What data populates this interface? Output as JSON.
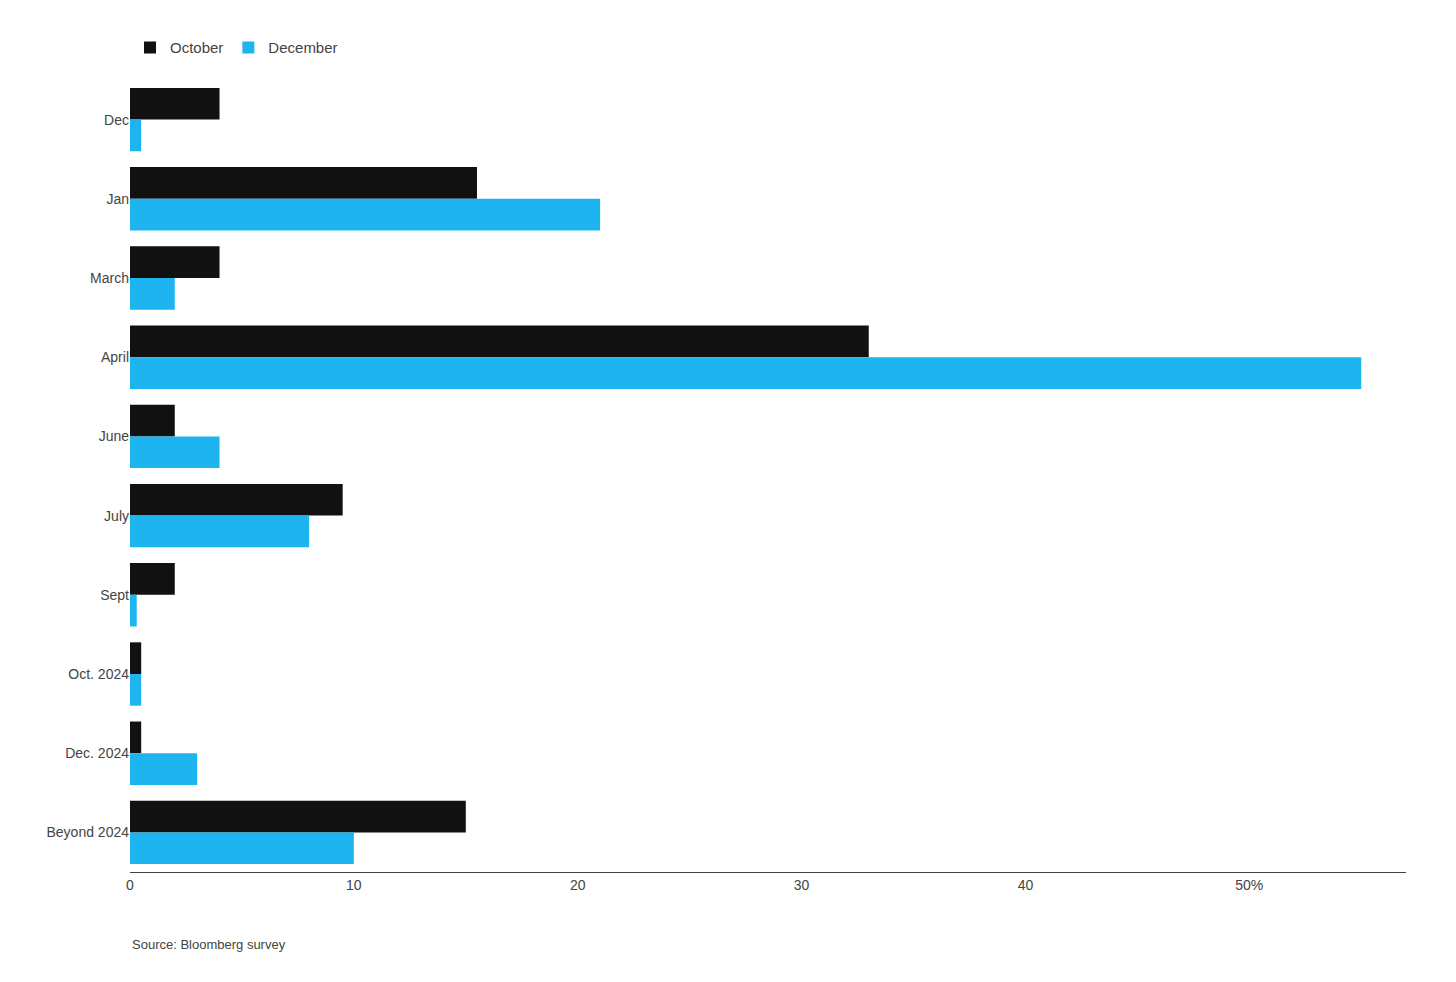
{
  "chart_data": {
    "type": "bar",
    "orientation": "horizontal",
    "categories": [
      "Dec",
      "Jan",
      "March",
      "April",
      "June",
      "July",
      "Sept",
      "Oct. 2024",
      "Dec. 2024",
      "Beyond 2024"
    ],
    "series": [
      {
        "name": "October",
        "color": "#111111",
        "values": [
          4.0,
          15.5,
          4.0,
          33.0,
          2.0,
          9.5,
          2.0,
          0.5,
          0.5,
          15.0
        ]
      },
      {
        "name": "December",
        "color": "#1DB4F0",
        "values": [
          0.5,
          21.0,
          2.0,
          55.0,
          4.0,
          8.0,
          0.3,
          0.5,
          3.0,
          10.0
        ]
      }
    ],
    "xlim": [
      0,
      57
    ],
    "xticks": [
      0,
      10,
      20,
      30,
      40,
      {
        "value": 50,
        "label": "50%"
      }
    ],
    "grid": false,
    "legend": "upper left",
    "annotations": [
      "Source: Bloomberg survey"
    ]
  }
}
